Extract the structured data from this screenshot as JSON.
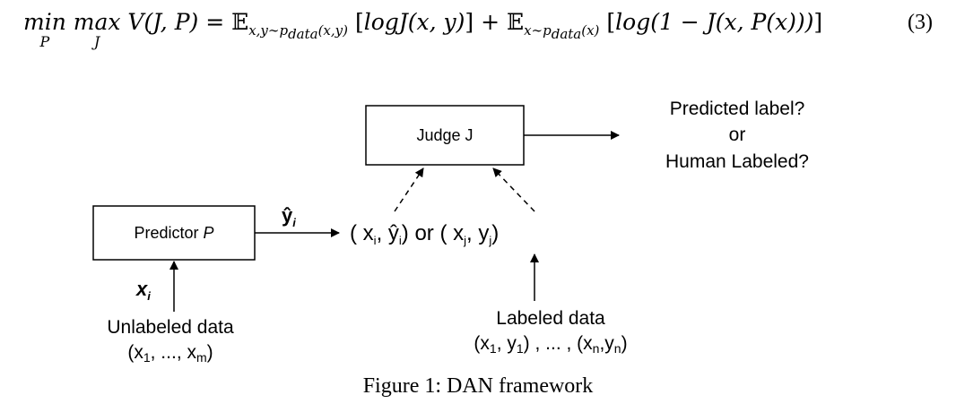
{
  "equation": {
    "number": "(3)"
  },
  "diagram": {
    "judge_label": "Judge J",
    "predictor_label": "Predictor",
    "predictor_symbol": "P",
    "output_text": {
      "line1": "Predicted label?",
      "line2": "or",
      "line3": "Human Labeled?"
    },
    "yhat_label": "ŷ",
    "yhat_sub": "i",
    "pair_text": "( x",
    "pair_sub_i": "i",
    "pair_mid": ", ŷ",
    "pair_sub_i2": "i",
    "pair_or": ") or ( x",
    "pair_sub_j": "j",
    "pair_mid2": ", y",
    "pair_sub_j2": "j",
    "pair_end": ")",
    "xi_label": "x",
    "xi_sub": "i",
    "unlabeled": {
      "line1": "Unlabeled data",
      "line2_open": "(x",
      "line2_sub1": "1",
      "line2_mid": ", ..., x",
      "line2_sub2": "m",
      "line2_close": ")"
    },
    "labeled": {
      "line1": "Labeled data",
      "line2_a": "(x",
      "line2_sub1": "1",
      "line2_b": ", y",
      "line2_sub2": "1",
      "line2_c": ") , ... , (x",
      "line2_sub3": "n",
      "line2_d": ",y",
      "line2_sub4": "n",
      "line2_e": ")"
    }
  },
  "caption": "Figure 1: DAN framework"
}
